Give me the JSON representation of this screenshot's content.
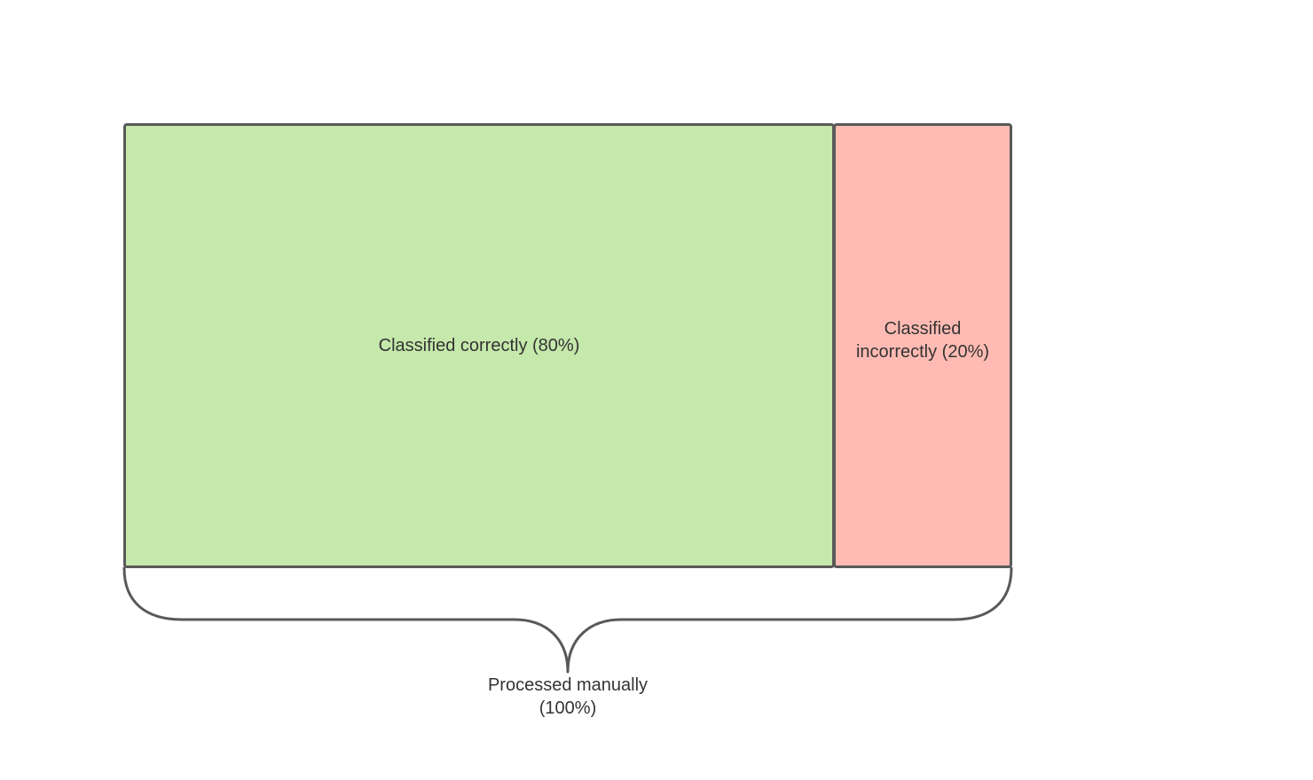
{
  "diagram": {
    "segments": [
      {
        "label": "Classified correctly (80%)",
        "percent": 80,
        "fill": "#c5e8ab"
      },
      {
        "label_lines": [
          "Classified",
          "incorrectly (20%)"
        ],
        "percent": 20,
        "fill": "#ffbbb3"
      }
    ],
    "total": {
      "label_lines": [
        "Processed manually",
        "(100%)"
      ],
      "percent": 100
    },
    "colors": {
      "stroke": "#595959",
      "text": "#333333",
      "background": "#ffffff"
    }
  }
}
